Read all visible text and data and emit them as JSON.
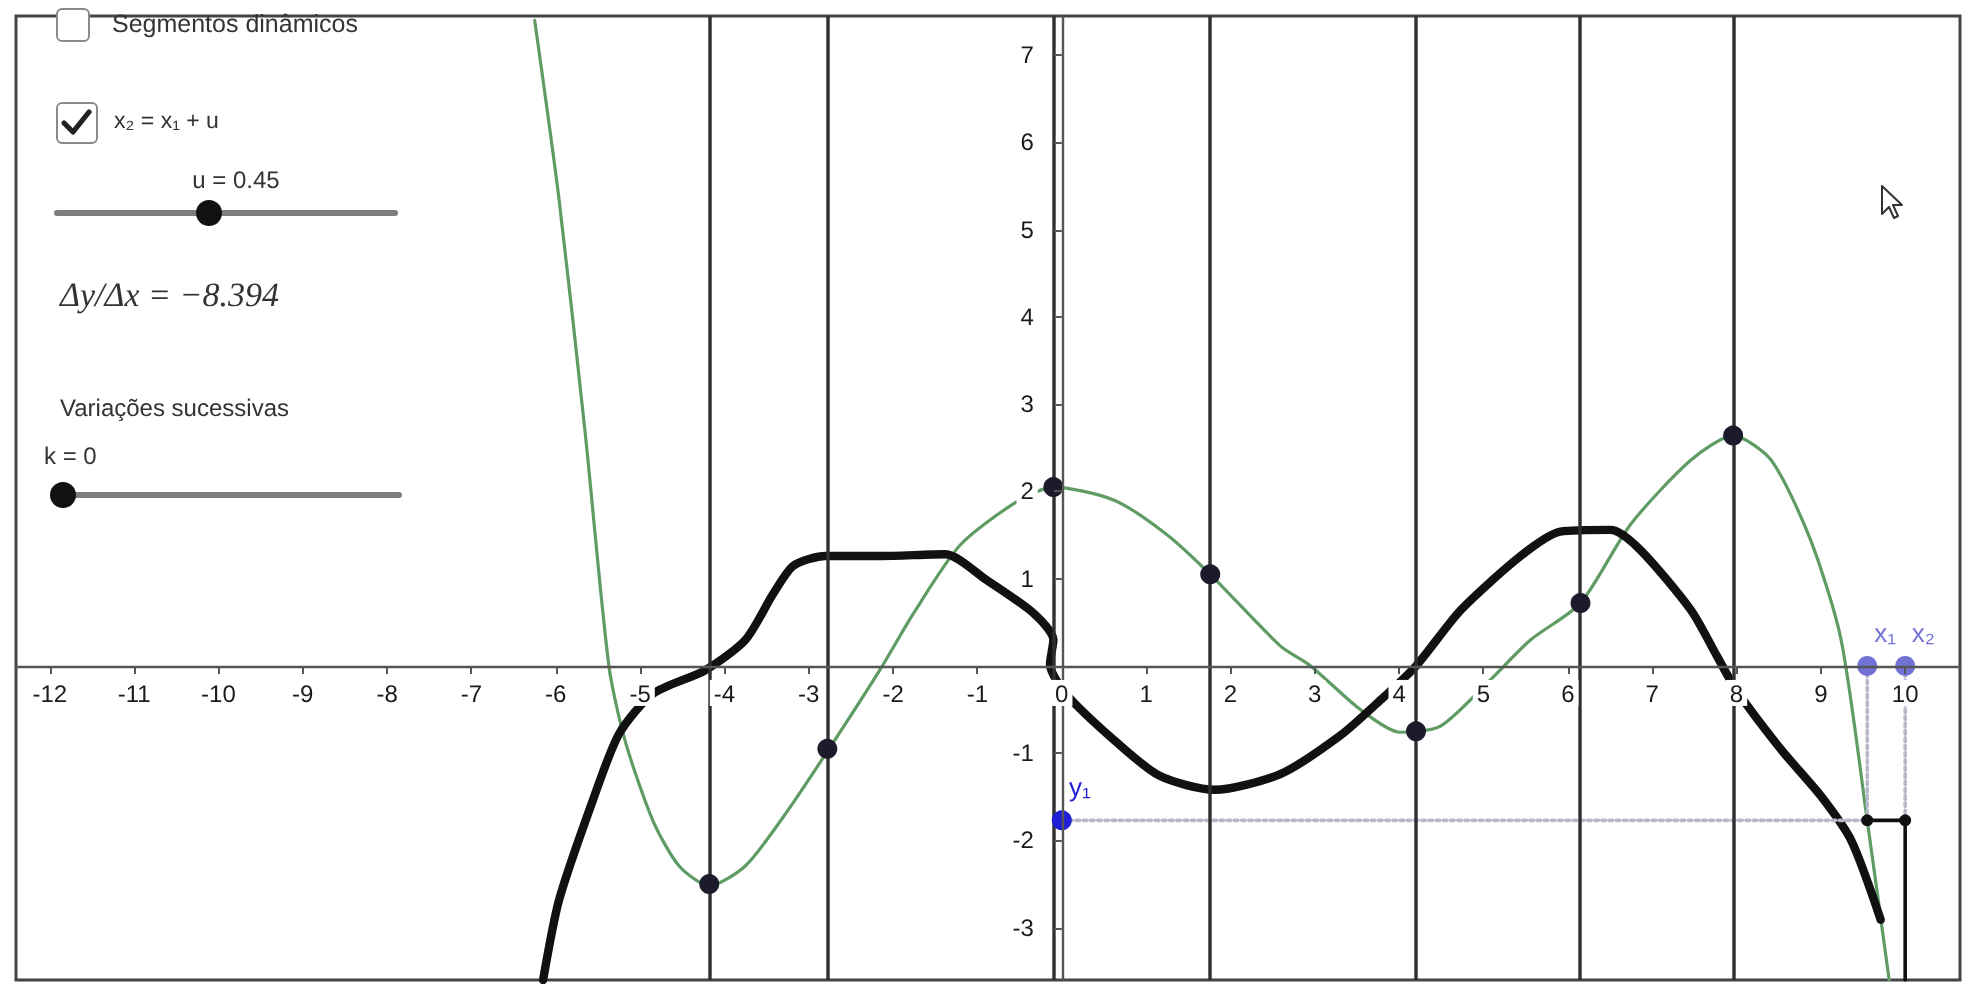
{
  "chart_data": {
    "type": "line",
    "xlim": [
      -12.4,
      10.65
    ],
    "ylim": [
      -3.6,
      7.45
    ],
    "xticks": [
      -12,
      -11,
      -10,
      -9,
      -8,
      -7,
      -6,
      -5,
      -4,
      -3,
      -2,
      -1,
      0,
      1,
      2,
      3,
      4,
      5,
      6,
      7,
      8,
      9,
      10
    ],
    "yticks": [
      -3,
      -2,
      -1,
      1,
      2,
      3,
      4,
      5,
      6,
      7
    ],
    "marker": "none",
    "series": [
      {
        "color": "#5e9c64",
        "x": [
          -6.25,
          -5.96,
          -5.65,
          -5.37,
          -5.18,
          -4.85,
          -4.54,
          -4.18,
          -3.75,
          -3.28,
          -2.78,
          -2.16,
          -1.76,
          -1.21,
          -0.57,
          -0.1,
          0.62,
          1.24,
          1.76,
          2.59,
          2.95,
          3.54,
          4.01,
          4.49,
          5.08,
          5.56,
          6.15,
          6.75,
          7.46,
          7.96,
          8.41,
          8.88,
          9.24,
          9.55,
          9.81
        ],
        "values": [
          7.4,
          5.34,
          2.66,
          0,
          -0.85,
          -1.77,
          -2.29,
          -2.52,
          -2.29,
          -1.7,
          -0.98,
          -0.05,
          0.6,
          1.38,
          1.86,
          2.05,
          1.9,
          1.51,
          1.05,
          0.23,
          0,
          -0.5,
          -0.76,
          -0.69,
          -0.16,
          0.3,
          0.72,
          1.63,
          2.36,
          2.64,
          2.36,
          1.44,
          0.3,
          -1.77,
          -3.6
        ]
      },
      {
        "color": "#111111",
        "x": [
          -6.15,
          -5.96,
          -5.56,
          -5.25,
          -4.85,
          -4.23,
          -3.75,
          -3.42,
          -3.18,
          -2.8,
          -2.16,
          -1.38,
          -0.9,
          -0.33,
          -0.1,
          -0.14,
          0.05,
          0.62,
          1.16,
          1.81,
          2.59,
          3.3,
          3.78,
          4.2,
          4.73,
          5.44,
          5.91,
          6.51,
          6.86,
          7.46,
          7.77,
          8.0,
          8.53,
          9.0,
          9.36,
          9.71
        ],
        "values": [
          -3.6,
          -2.68,
          -1.54,
          -0.78,
          -0.32,
          -0.05,
          0.3,
          0.83,
          1.15,
          1.26,
          1.26,
          1.28,
          0.99,
          0.6,
          0.3,
          0.02,
          -0.32,
          -0.85,
          -1.26,
          -1.42,
          -1.24,
          -0.8,
          -0.39,
          0,
          0.64,
          1.26,
          1.54,
          1.56,
          1.33,
          0.64,
          0.11,
          -0.28,
          -0.96,
          -1.49,
          -2.0,
          -2.91
        ]
      },
      {
        "type": "scatter",
        "marker": "circle",
        "color": "#1b1b2b",
        "x": [
          -4.18,
          -2.78,
          -0.1,
          1.76,
          4.2,
          6.15,
          7.96
        ],
        "values": [
          -2.5,
          -0.95,
          2.05,
          1.05,
          -0.75,
          0.72,
          2.64
        ]
      },
      {
        "color": "#b8b8c8",
        "line_style": "dotted",
        "x": [
          0,
          9.55
        ],
        "values": [
          -1.77,
          -1.77
        ]
      },
      {
        "color": "#b8b8c8",
        "line_style": "dotted",
        "x": [
          9.55,
          9.55
        ],
        "values": [
          0,
          -1.77
        ]
      },
      {
        "color": "#b8b8c8",
        "line_style": "dotted",
        "x": [
          10,
          10
        ],
        "values": [
          0,
          -1.77
        ]
      },
      {
        "color": "#111111",
        "marker": "circle",
        "x": [
          9.55,
          10
        ],
        "values": [
          -1.77,
          -1.77
        ]
      },
      {
        "color": "#111111",
        "x": [
          10,
          10
        ],
        "values": [
          -1.77,
          -3.6
        ]
      },
      {
        "type": "scatter",
        "marker": "circle",
        "name": "y₁",
        "color": "#1f1fd8",
        "x": [
          0
        ],
        "values": [
          -1.77
        ]
      },
      {
        "type": "scatter",
        "marker": "circle",
        "name": "x₁",
        "color": "#7272d6",
        "x": [
          9.55
        ],
        "values": [
          0
        ]
      },
      {
        "type": "scatter",
        "marker": "circle",
        "name": "x₂",
        "color": "#7272d6",
        "x": [
          10
        ],
        "values": [
          0
        ]
      }
    ],
    "ref_lines": [
      {
        "axis": "x",
        "value": -4.18,
        "color": "#2f2f2f"
      },
      {
        "axis": "x",
        "value": -2.78,
        "color": "#2f2f2f"
      },
      {
        "axis": "x",
        "value": -0.1,
        "color": "#2f2f2f"
      },
      {
        "axis": "x",
        "value": 1.76,
        "color": "#2f2f2f"
      },
      {
        "axis": "x",
        "value": 4.2,
        "color": "#2f2f2f"
      },
      {
        "axis": "x",
        "value": 6.15,
        "color": "#2f2f2f"
      },
      {
        "axis": "x",
        "value": 7.96,
        "color": "#2f2f2f"
      }
    ],
    "annotations": [
      "Segmentos dinâmicos",
      "x₂ = x₁ + u",
      "u = 0.45",
      "Δy/Δx = −8.394",
      "Variações sucessivas",
      "k = 0"
    ]
  }
}
